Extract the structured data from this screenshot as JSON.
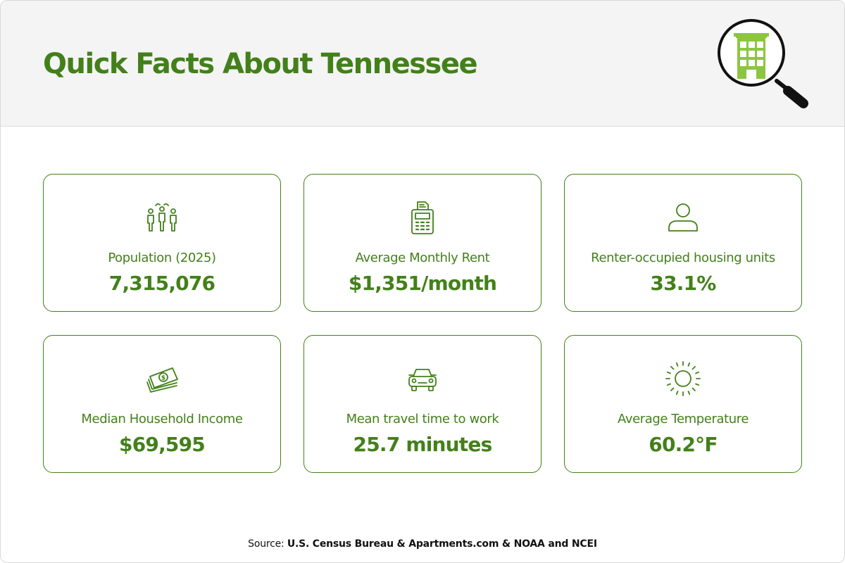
{
  "title": "Quick Facts About Tennessee",
  "header_icon": "building-magnifier-icon",
  "colors": {
    "accent": "#43801a",
    "icon_fill": "#8cc63f",
    "header_bg": "#f4f4f4"
  },
  "cards": [
    {
      "icon": "people-group-icon",
      "label": "Population (2025)",
      "value": "7,315,076"
    },
    {
      "icon": "rent-calculator-icon",
      "label": "Average Monthly Rent",
      "value": "$1,351/month"
    },
    {
      "icon": "person-icon",
      "label": "Renter-occupied housing units",
      "value": "33.1%"
    },
    {
      "icon": "money-icon",
      "label": "Median Household Income",
      "value": "$69,595"
    },
    {
      "icon": "car-icon",
      "label": "Mean travel time to work",
      "value": "25.7 minutes"
    },
    {
      "icon": "sun-icon",
      "label": "Average Temperature",
      "value": "60.2°F"
    }
  ],
  "source": {
    "prefix": "Source:",
    "text": "U.S. Census Bureau & Apartments.com & NOAA and NCEI"
  }
}
